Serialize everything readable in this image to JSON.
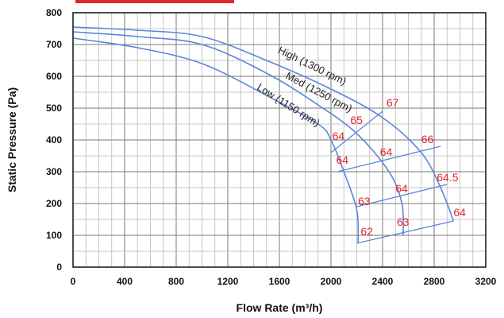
{
  "chart_data": {
    "type": "line",
    "xlabel": "Flow Rate (m³/h)",
    "ylabel": "Static Pressure (Pa)",
    "xlim": [
      0,
      3200
    ],
    "ylim": [
      0,
      800
    ],
    "x_ticks": [
      "0",
      "400",
      "800",
      "1200",
      "1600",
      "2000",
      "2400",
      "2800",
      "3200"
    ],
    "y_ticks": [
      "0",
      "100",
      "200",
      "300",
      "400",
      "500",
      "600",
      "700",
      "800"
    ],
    "grid": true,
    "accent_color": "#e0262e",
    "curve_color": "#5b86d8",
    "series": [
      {
        "name": "High (1300 rpm)",
        "x": [
          0,
          500,
          1000,
          1500,
          2000,
          2400,
          2700,
          2850,
          2950
        ],
        "y": [
          755,
          745,
          725,
          650,
          560,
          470,
          360,
          250,
          145
        ]
      },
      {
        "name": "Med (1250 rpm)",
        "x": [
          0,
          500,
          1000,
          1500,
          1900,
          2200,
          2450,
          2550,
          2560
        ],
        "y": [
          740,
          725,
          700,
          610,
          510,
          420,
          300,
          200,
          100
        ]
      },
      {
        "name": "Low (1150 rpm)",
        "x": [
          0,
          500,
          1000,
          1500,
          1900,
          2000,
          2100,
          2200,
          2210
        ],
        "y": [
          720,
          690,
          640,
          540,
          450,
          400,
          300,
          180,
          75
        ]
      }
    ],
    "system_lines": [
      {
        "x": [
          2000,
          2400
        ],
        "y": [
          360,
          490
        ]
      },
      {
        "x": [
          2050,
          2850
        ],
        "y": [
          300,
          380
        ]
      },
      {
        "x": [
          2200,
          2900
        ],
        "y": [
          190,
          260
        ]
      },
      {
        "x": [
          2200,
          2950
        ],
        "y": [
          75,
          145
        ]
      }
    ],
    "annotations": [
      {
        "text": "67",
        "x": 2430,
        "y": 505
      },
      {
        "text": "65",
        "x": 2150,
        "y": 450
      },
      {
        "text": "66",
        "x": 2700,
        "y": 390
      },
      {
        "text": "64",
        "x": 2010,
        "y": 400
      },
      {
        "text": "64",
        "x": 2380,
        "y": 350
      },
      {
        "text": "64",
        "x": 2040,
        "y": 325
      },
      {
        "text": "64.5",
        "x": 2820,
        "y": 270
      },
      {
        "text": "64",
        "x": 2500,
        "y": 235
      },
      {
        "text": "63",
        "x": 2210,
        "y": 195
      },
      {
        "text": "63",
        "x": 2510,
        "y": 130
      },
      {
        "text": "64",
        "x": 2950,
        "y": 160
      },
      {
        "text": "62",
        "x": 2230,
        "y": 100
      }
    ]
  }
}
